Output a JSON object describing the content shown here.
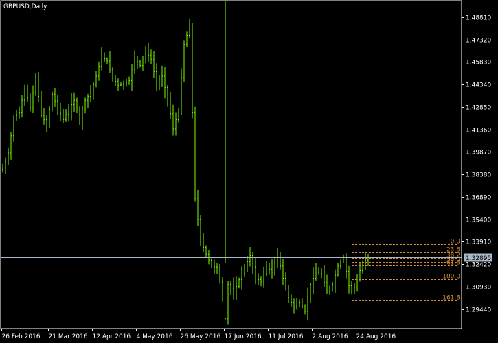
{
  "chart_data": {
    "type": "line",
    "title": "GBPUSD,Daily",
    "colors": {
      "background": "#000000",
      "axis": "#ffffff",
      "candle": "#7cfc00",
      "fibo": "#d08a3a",
      "current_line": "#a9b8c8",
      "price_box": "#a9b8c8"
    },
    "ylim": [
      1.282,
      1.499
    ],
    "y_ticks": [
      "1.48810",
      "1.47320",
      "1.45830",
      "1.44340",
      "1.42850",
      "1.41360",
      "1.39870",
      "1.38380",
      "1.36890",
      "1.35400",
      "1.33910",
      "1.32420",
      "1.30930",
      "1.29440"
    ],
    "x_tick_labels": [
      "26 Feb 2016",
      "21 Mar 2016",
      "12 Apr 2016",
      "4 May 2016",
      "26 May 2016",
      "17 Jun 2016",
      "11 Jul 2016",
      "2 Aug 2016",
      "24 Aug 2016"
    ],
    "x_tick_bar_index": [
      0,
      17,
      33,
      49,
      65,
      81,
      97,
      113,
      129
    ],
    "current_price": "1.32895",
    "series": [
      {
        "x": [
          0,
          2,
          4,
          6,
          8,
          10,
          12,
          14,
          16,
          18,
          20,
          22,
          24,
          26,
          28,
          30,
          32,
          34,
          36,
          38,
          40,
          42,
          44,
          46,
          48,
          50,
          52,
          54,
          56,
          58,
          60,
          62,
          64,
          66,
          68,
          70,
          72,
          74,
          76,
          78,
          80,
          81,
          82,
          84,
          86,
          88,
          90,
          92,
          94,
          96,
          98,
          100,
          102,
          104,
          106,
          108,
          110,
          112,
          114,
          116,
          118,
          120,
          122,
          124,
          126,
          128,
          130,
          132,
          133
        ],
        "values": [
          1.387,
          1.398,
          1.421,
          1.425,
          1.441,
          1.428,
          1.448,
          1.423,
          1.417,
          1.437,
          1.428,
          1.42,
          1.427,
          1.433,
          1.42,
          1.433,
          1.438,
          1.449,
          1.462,
          1.459,
          1.448,
          1.443,
          1.444,
          1.446,
          1.461,
          1.456,
          1.466,
          1.46,
          1.444,
          1.449,
          1.434,
          1.414,
          1.426,
          1.47,
          1.482,
          1.368,
          1.34,
          1.331,
          1.323,
          1.322,
          1.303,
          1.288,
          1.311,
          1.305,
          1.314,
          1.322,
          1.33,
          1.315,
          1.313,
          1.323,
          1.319,
          1.331,
          1.315,
          1.302,
          1.296,
          1.299,
          1.293,
          1.311,
          1.319,
          1.318,
          1.306,
          1.311,
          1.323,
          1.329,
          1.31,
          1.309,
          1.32,
          1.327,
          1.329
        ]
      }
    ],
    "fibo": {
      "levels": [
        {
          "label": "0.0",
          "price": 1.3375
        },
        {
          "label": "23.6",
          "price": 1.332
        },
        {
          "label": "38.2",
          "price": 1.3286
        },
        {
          "label": "50.0",
          "price": 1.3259
        },
        {
          "label": "61.8",
          "price": 1.3232
        },
        {
          "label": "100.0",
          "price": 1.3144
        },
        {
          "label": "161.8",
          "price": 1.3001
        }
      ],
      "start_bar": 127
    }
  }
}
